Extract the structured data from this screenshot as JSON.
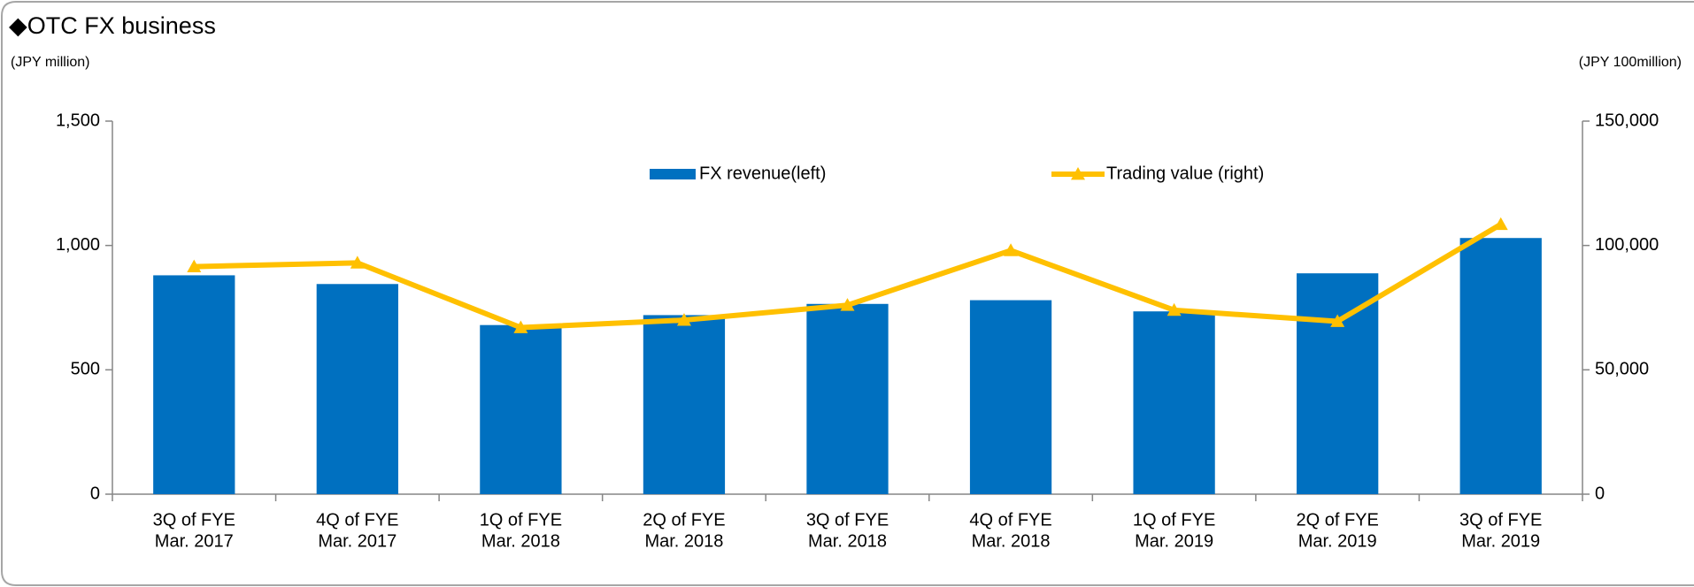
{
  "chart_data": {
    "type": "bar_line",
    "title": "◆OTC FX business",
    "y_label": "(JPY million)",
    "y2_label": "(JPY 100million)",
    "categories": [
      [
        "3Q of FYE",
        "Mar. 2017"
      ],
      [
        "4Q of FYE",
        "Mar. 2017"
      ],
      [
        "1Q of FYE",
        "Mar. 2018"
      ],
      [
        "2Q of FYE",
        "Mar. 2018"
      ],
      [
        "3Q of FYE",
        "Mar. 2018"
      ],
      [
        "4Q of FYE",
        "Mar. 2018"
      ],
      [
        "1Q of FYE",
        "Mar. 2019"
      ],
      [
        "2Q of FYE",
        "Mar. 2019"
      ],
      [
        "3Q of FYE",
        "Mar. 2019"
      ]
    ],
    "series": [
      {
        "name": "FX revenue(left)",
        "type": "bar",
        "color": "#0070c0",
        "values": [
          880,
          845,
          680,
          720,
          765,
          780,
          735,
          888,
          1030
        ]
      },
      {
        "name": "Trading value (right)",
        "type": "line",
        "axis": "y2",
        "color": "#ffc000",
        "values": [
          91500,
          93000,
          67000,
          70000,
          76000,
          98000,
          74000,
          69500,
          108500
        ]
      }
    ],
    "ylim": [
      0,
      1500
    ],
    "yticks": [
      0,
      500,
      {
        "value": 1000,
        "label": "1,000"
      },
      {
        "value": 1500,
        "label": "1,500"
      }
    ],
    "y2lim": [
      0,
      150000
    ],
    "y2ticks": [
      0,
      {
        "value": 50000,
        "label": "50,000"
      },
      {
        "value": 100000,
        "label": "100,000"
      },
      {
        "value": 150000,
        "label": "150,000"
      }
    ],
    "grid": false,
    "legend": "top"
  }
}
